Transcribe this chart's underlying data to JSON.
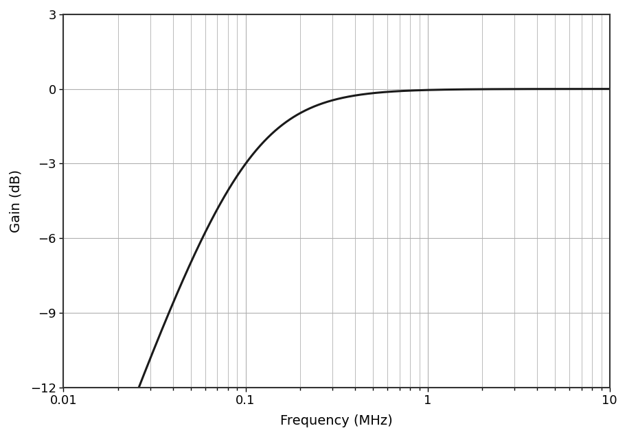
{
  "xlabel": "Frequency (MHz)",
  "ylabel": "Gain (dB)",
  "xmin": 0.01,
  "xmax": 10,
  "ymin": -12,
  "ymax": 3,
  "yticks": [
    -12,
    -9,
    -6,
    -3,
    0,
    3
  ],
  "line_color": "#1a1a1a",
  "line_width": 2.2,
  "background_color": "#ffffff",
  "grid_color": "#b0b0b0",
  "fc_MHz": 0.1,
  "filter_order": 1,
  "label_fontsize": 14,
  "tick_fontsize": 13,
  "spine_color": "#333333",
  "spine_linewidth": 1.5
}
